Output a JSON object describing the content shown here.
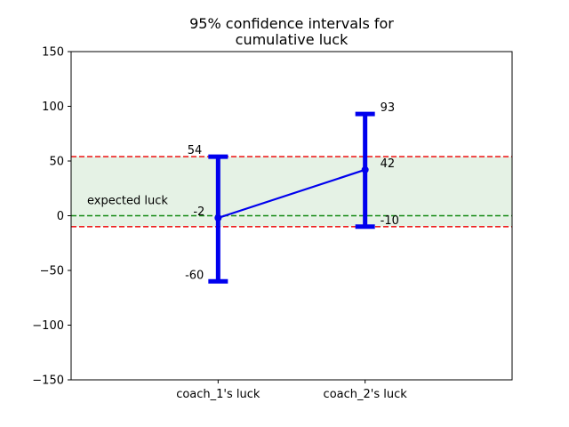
{
  "chart_data": {
    "type": "line",
    "title_line1": "95% confidence intervals for",
    "title_line2": "cumulative luck",
    "xlabel": "",
    "ylabel": "",
    "categories": [
      "coach_1's luck",
      "coach_2's luck"
    ],
    "ylim": [
      -150,
      150
    ],
    "yticks": [
      150,
      100,
      50,
      0,
      -50,
      -100,
      -150
    ],
    "ytick_labels": [
      "150",
      "100",
      "50",
      "0",
      "−50",
      "−100",
      "−150"
    ],
    "xlim": [
      -1,
      2
    ],
    "grid": false,
    "series": [
      {
        "values": [
          -2,
          42
        ],
        "lower": [
          -60,
          -10
        ],
        "upper": [
          54,
          93
        ],
        "point_labels": [
          "-2",
          "42"
        ],
        "lower_labels": [
          "-60",
          "-10"
        ],
        "upper_labels": [
          "54",
          "93"
        ]
      }
    ],
    "reference_lines": {
      "upper": 54,
      "expected": 0,
      "lower": -10
    },
    "shaded_band": [
      -10,
      54
    ],
    "band_label": "expected luck",
    "colors": {
      "series": "#0000ee",
      "limit_lines": "#ee2222",
      "expected_line": "#118811",
      "band_fill": "#e5f2e5",
      "axis": "#000000"
    }
  }
}
